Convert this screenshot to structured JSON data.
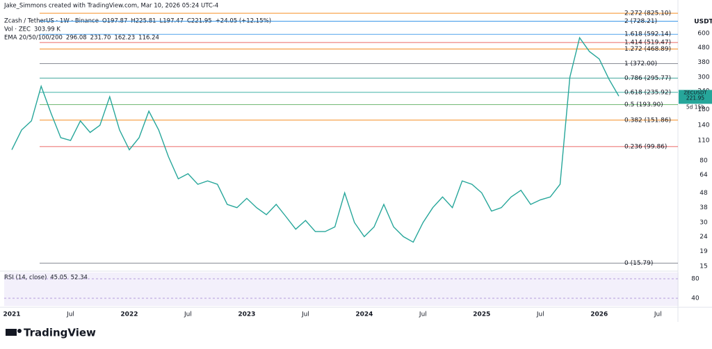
{
  "chart_data": {
    "type": "line",
    "log_scale": true,
    "credit": "Jake_Simmons created with TradingView.com, Mar 10, 2026 05:24 UTC-4",
    "title": "Zcash / TetherUS · 1W · Binance",
    "ohlc": [
      "O197.87",
      "H225.81",
      "L197.47",
      "C221.95"
    ],
    "change": "+24.05 (+12.15%)",
    "volume_label": "Vol · ZEC",
    "volume_value": "303.99 K",
    "ema_label": "EMA 20/50/100/200",
    "ema_values": [
      {
        "text": "296.08",
        "color": "#e53935"
      },
      {
        "text": "231.70",
        "color": "#f57c00"
      },
      {
        "text": "162.23",
        "color": "#26c6da"
      },
      {
        "text": "116.24",
        "color": "#303f9f"
      }
    ],
    "currency": "USDT",
    "symbol": "ZECUSDT",
    "last_price": 221.95,
    "countdown": "5d 15h",
    "rsi_label": "RSI (14, close)",
    "rsi_values": [
      {
        "text": "45.05",
        "color": "#7e57c2"
      },
      {
        "text": "52.34",
        "color": "#f9a825"
      }
    ],
    "rsi_ylim": [
      24.3,
      92.9
    ],
    "rsi_yticks": [
      80,
      40
    ],
    "brand": "TradingView",
    "x": [
      "2021-01",
      "2021-02",
      "2021-03",
      "2021-04",
      "2021-05",
      "2021-06",
      "2021-07",
      "2021-08",
      "2021-09",
      "2021-10",
      "2021-11",
      "2021-12",
      "2022-01",
      "2022-02",
      "2022-03",
      "2022-04",
      "2022-05",
      "2022-06",
      "2022-07",
      "2022-08",
      "2022-09",
      "2022-10",
      "2022-11",
      "2022-12",
      "2023-01",
      "2023-02",
      "2023-03",
      "2023-04",
      "2023-05",
      "2023-06",
      "2023-07",
      "2023-08",
      "2023-09",
      "2023-10",
      "2023-11",
      "2023-12",
      "2024-01",
      "2024-02",
      "2024-03",
      "2024-04",
      "2024-05",
      "2024-06",
      "2024-07",
      "2024-08",
      "2024-09",
      "2024-10",
      "2024-11",
      "2024-12",
      "2025-01",
      "2025-02",
      "2025-03",
      "2025-04",
      "2025-05",
      "2025-06",
      "2025-07",
      "2025-08",
      "2025-09",
      "2025-10",
      "2025-11",
      "2025-12",
      "2026-01",
      "2026-02",
      "2026-03"
    ],
    "series": [
      {
        "name": "ZECUSDT",
        "color": "#26a69a",
        "values": [
          95,
          130,
          150,
          260,
          170,
          115,
          110,
          150,
          125,
          140,
          220,
          130,
          95,
          115,
          175,
          130,
          85,
          60,
          65,
          55,
          58,
          55,
          40,
          38,
          44,
          38,
          34,
          40,
          33,
          27,
          31,
          26,
          26,
          28,
          48,
          30,
          24,
          28,
          40,
          28,
          24,
          22,
          30,
          38,
          45,
          38,
          58,
          55,
          48,
          36,
          38,
          45,
          50,
          40,
          43,
          45,
          55,
          300,
          560,
          450,
          400,
          290,
          221.95
        ]
      }
    ],
    "xticks": [
      {
        "value": "2021-01",
        "label": "2021"
      },
      {
        "value": "2021-07",
        "label": "Jul"
      },
      {
        "value": "2022-01",
        "label": "2022"
      },
      {
        "value": "2022-07",
        "label": "Jul"
      },
      {
        "value": "2023-01",
        "label": "2023"
      },
      {
        "value": "2023-07",
        "label": "Jul"
      },
      {
        "value": "2024-01",
        "label": "2024"
      },
      {
        "value": "2024-07",
        "label": "Jul"
      },
      {
        "value": "2025-01",
        "label": "2025"
      },
      {
        "value": "2025-07",
        "label": "Jul"
      },
      {
        "value": "2026-01",
        "label": "2026"
      },
      {
        "value": "2026-07",
        "label": "Jul"
      }
    ],
    "ylim": [
      13.9,
      835
    ],
    "yticks": [
      600,
      480,
      380,
      300,
      240,
      180,
      140,
      110,
      80,
      64,
      48,
      38,
      30,
      24,
      19,
      15
    ],
    "fib_levels": [
      {
        "label": "2.272 (825.10)",
        "value": 825.1,
        "color": "#f57c00"
      },
      {
        "label": "2 (728.21)",
        "value": 728.21,
        "color": "#1e88e5"
      },
      {
        "label": "1.618 (592.14)",
        "value": 592.14,
        "color": "#1e88e5"
      },
      {
        "label": "1.414 (519.47)",
        "value": 519.47,
        "color": "#e53935"
      },
      {
        "label": "1.272 (468.89)",
        "value": 468.89,
        "color": "#f57c00"
      },
      {
        "label": "1 (372.00)",
        "value": 372.0,
        "color": "#787b86"
      },
      {
        "label": "0.786 (295.77)",
        "value": 295.77,
        "color": "#00897b"
      },
      {
        "label": "0.618 (235.92)",
        "value": 235.92,
        "color": "#26a69a"
      },
      {
        "label": "0.5 (193.90)",
        "value": 193.9,
        "color": "#43a047"
      },
      {
        "label": "0.382 (151.86)",
        "value": 151.86,
        "color": "#f57c00"
      },
      {
        "label": "0.236 (99.86)",
        "value": 99.86,
        "color": "#e53935"
      },
      {
        "label": "0 (15.79)",
        "value": 15.79,
        "color": "#787b86"
      }
    ]
  }
}
